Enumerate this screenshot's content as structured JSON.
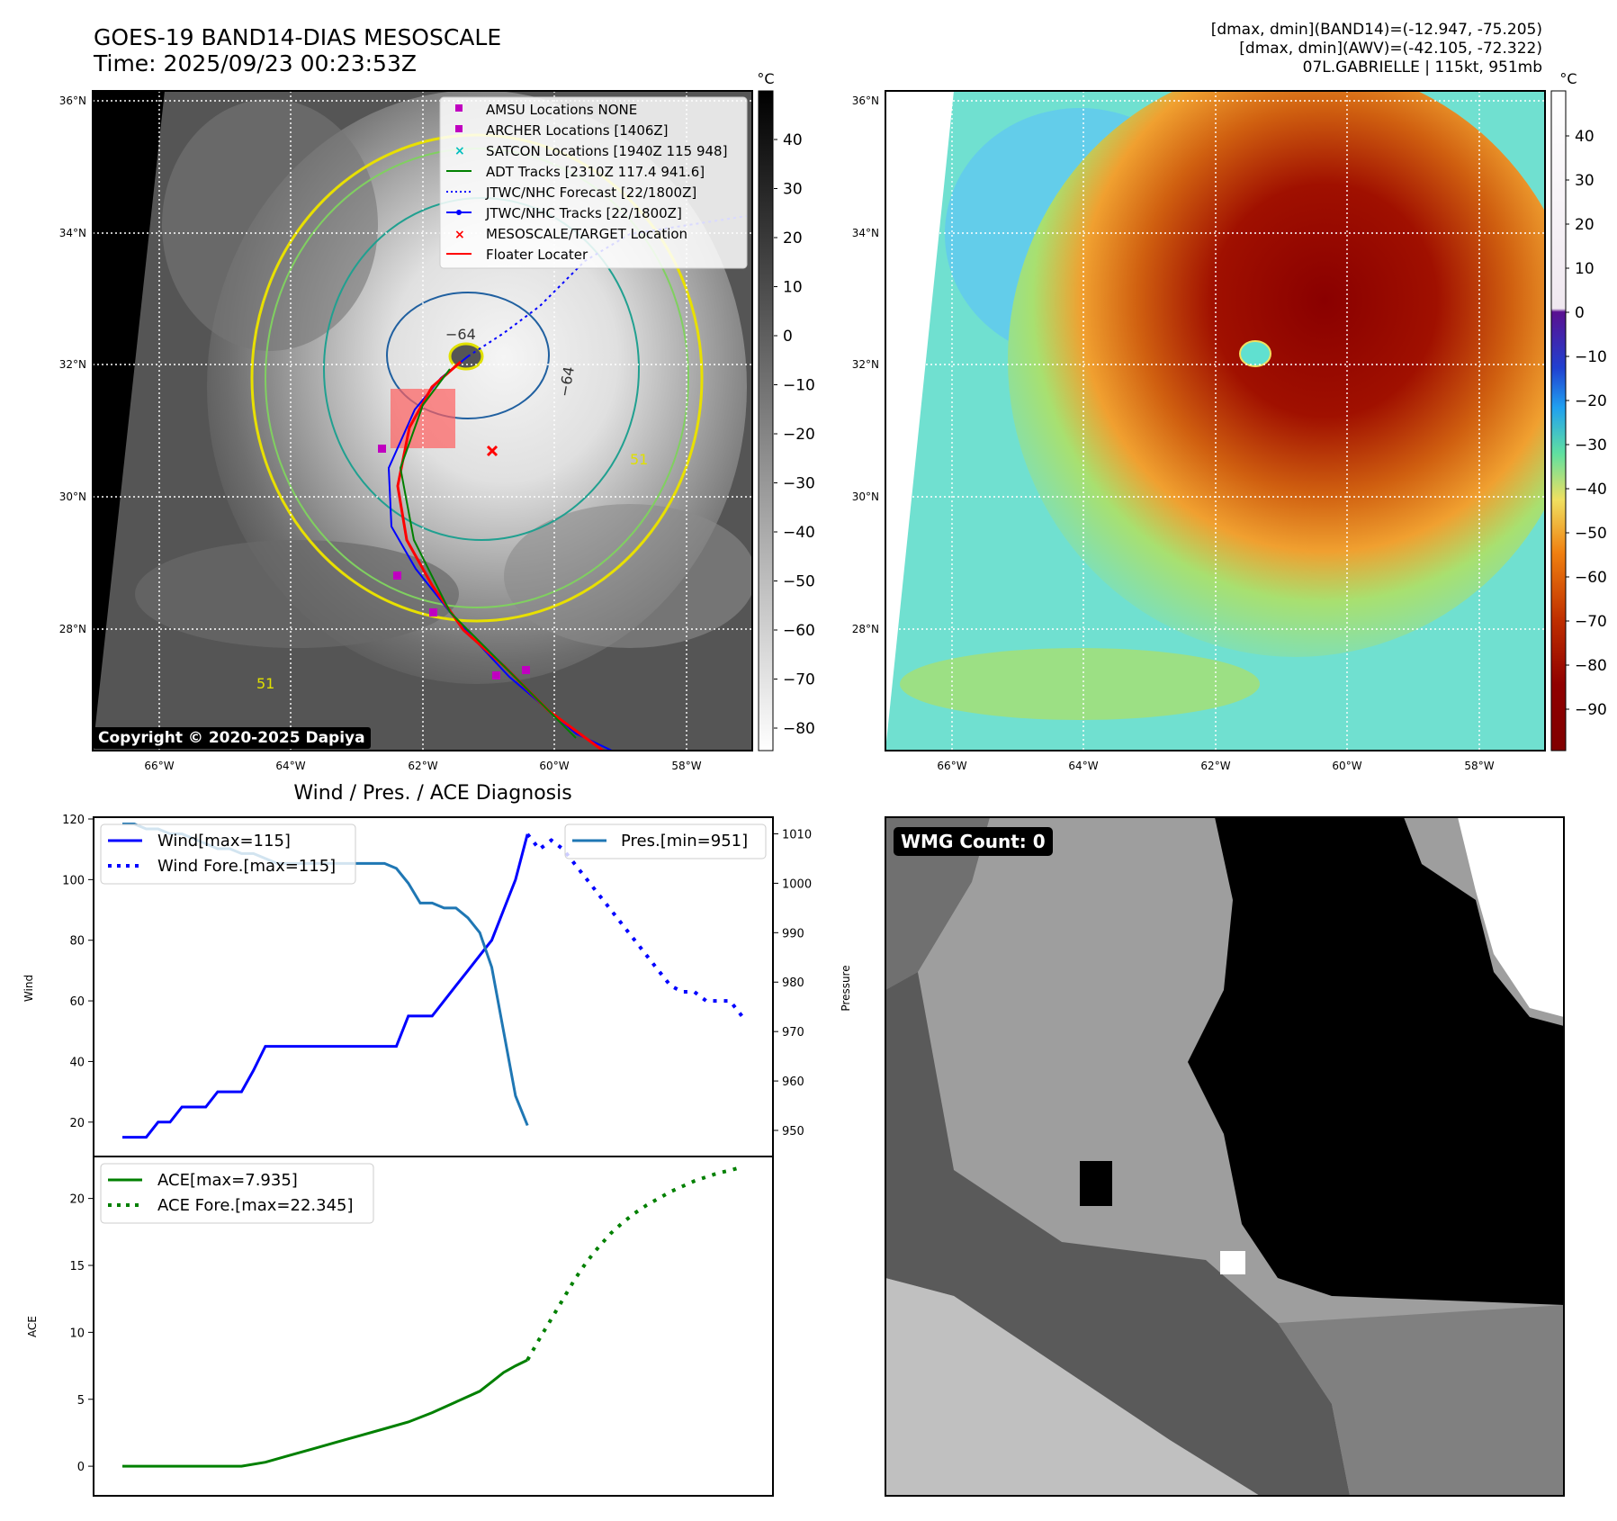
{
  "header": {
    "title": "GOES-19 BAND14-DIAS MESOSCALE",
    "time": "Time: 2025/09/23 00:23:53Z",
    "stats_band14": "[dmax, dmin](BAND14)=(-12.947, -75.205)",
    "stats_awv": "[dmax, dmin](AWV)=(-42.105, -72.322)",
    "storm": "07L.GABRIELLE | 115kt, 951mb"
  },
  "map_left": {
    "colorbar_unit": "°C",
    "colorbar_ticks": [
      "40",
      "30",
      "20",
      "10",
      "0",
      "−10",
      "−20",
      "−30",
      "−40",
      "−50",
      "−60",
      "−70",
      "−80"
    ],
    "lat_labels": [
      "36°N",
      "34°N",
      "32°N",
      "30°N",
      "28°N"
    ],
    "lon_labels": [
      "66°W",
      "64°W",
      "62°W",
      "60°W",
      "58°W"
    ],
    "contour_labels": [
      "−64",
      "−64",
      "51",
      "51"
    ],
    "copyright": "Copyright © 2020-2025 Dapiya",
    "legend": [
      {
        "label": "AMSU Locations NONE",
        "marker": "square",
        "color": "#c000c0"
      },
      {
        "label": "ARCHER Locations [1406Z]",
        "marker": "square",
        "color": "#c000c0"
      },
      {
        "label": "SATCON Locations [1940Z 115 948]",
        "marker": "x",
        "color": "#00bfbf"
      },
      {
        "label": "ADT Tracks [2310Z 117.4 941.6]",
        "marker": "line",
        "color": "#008000"
      },
      {
        "label": "JTWC/NHC Forecast [22/1800Z]",
        "marker": "dotted",
        "color": "#0000ff"
      },
      {
        "label": "JTWC/NHC Tracks [22/1800Z]",
        "marker": "line-dot",
        "color": "#0000ff"
      },
      {
        "label": "MESOSCALE/TARGET Location",
        "marker": "x",
        "color": "#ff0000"
      },
      {
        "label": "Floater Locater",
        "marker": "line",
        "color": "#ff0000"
      }
    ]
  },
  "map_right": {
    "colorbar_unit": "°C",
    "colorbar_ticks": [
      "40",
      "30",
      "20",
      "10",
      "0",
      "−10",
      "−20",
      "−30",
      "−40",
      "−50",
      "−60",
      "−70",
      "−80",
      "−90"
    ],
    "lat_labels": [
      "36°N",
      "34°N",
      "32°N",
      "30°N",
      "28°N"
    ],
    "lon_labels": [
      "66°W",
      "64°W",
      "62°W",
      "60°W",
      "58°W"
    ]
  },
  "diagnosis": {
    "title": "Wind / Pres. / ACE Diagnosis",
    "wind_axis_label": "Wind",
    "pressure_axis_label": "Pressure",
    "ace_axis_label": "ACE",
    "legend_wind": "Wind[max=115]",
    "legend_wind_fore": "Wind Fore.[max=115]",
    "legend_pres": "Pres.[min=951]",
    "legend_ace": "ACE[max=7.935]",
    "legend_ace_fore": "ACE Fore.[max=22.345]"
  },
  "wmg": {
    "label": "WMG Count: 0"
  },
  "colors": {
    "wind": "#0000ff",
    "pressure": "#1f77b4",
    "ace": "#008000"
  },
  "chart_data": [
    {
      "type": "line",
      "title": "Wind / Pres. / ACE Diagnosis",
      "ylabel": "Wind",
      "ylim": [
        14,
        120
      ],
      "y_ticks": [
        20,
        40,
        60,
        80,
        100,
        120
      ],
      "series": [
        {
          "name": "Wind[max=115]",
          "x": [
            0,
            2,
            3,
            4,
            5,
            6,
            7,
            8,
            9,
            10,
            11,
            12,
            13,
            14,
            15,
            16,
            17,
            18,
            19,
            20,
            21,
            22,
            23,
            24,
            25,
            26,
            27,
            28,
            29,
            30,
            31,
            32,
            33,
            34
          ],
          "values": [
            15,
            15,
            20,
            20,
            25,
            25,
            25,
            30,
            30,
            30,
            37,
            45,
            45,
            45,
            45,
            45,
            45,
            45,
            45,
            45,
            45,
            45,
            45,
            55,
            55,
            55,
            60,
            65,
            70,
            75,
            80,
            90,
            100,
            115
          ]
        },
        {
          "name": "Wind Fore.[max=115]",
          "x": [
            34,
            35,
            36,
            37,
            38,
            39,
            40,
            41,
            42,
            43,
            44,
            45,
            46,
            47,
            48,
            49,
            50,
            51,
            52
          ],
          "values": [
            115,
            110,
            113,
            110,
            105,
            100,
            95,
            90,
            85,
            80,
            75,
            70,
            65,
            63,
            63,
            60,
            60,
            60,
            55
          ]
        }
      ]
    },
    {
      "type": "line",
      "ylabel": "Pressure",
      "ylim": [
        948,
        1013
      ],
      "y_ticks": [
        950,
        960,
        970,
        980,
        990,
        1000,
        1010
      ],
      "series": [
        {
          "name": "Pres.[min=951]",
          "x": [
            0,
            1,
            2,
            3,
            4,
            5,
            6,
            7,
            8,
            9,
            10,
            11,
            12,
            13,
            14,
            15,
            16,
            17,
            18,
            19,
            20,
            21,
            22,
            23,
            24,
            25,
            26,
            27,
            28,
            29,
            30,
            31,
            32,
            33,
            34
          ],
          "values": [
            1012,
            1012,
            1011,
            1011,
            1010,
            1010,
            1009,
            1008,
            1007,
            1007,
            1006,
            1006,
            1005,
            1004,
            1004,
            1004,
            1004,
            1004,
            1004,
            1004,
            1004,
            1004,
            1004,
            1003,
            1000,
            996,
            996,
            995,
            995,
            993,
            990,
            983,
            970,
            957,
            951
          ]
        }
      ]
    },
    {
      "type": "line",
      "ylabel": "ACE",
      "ylim": [
        -1,
        23
      ],
      "y_ticks": [
        0,
        5,
        10,
        15,
        20
      ],
      "series": [
        {
          "name": "ACE[max=7.935]",
          "x": [
            0,
            2,
            4,
            6,
            8,
            10,
            12,
            14,
            16,
            18,
            20,
            22,
            24,
            26,
            28,
            30,
            31,
            32,
            33,
            34
          ],
          "values": [
            0,
            0,
            0,
            0,
            0,
            0,
            0.3,
            0.8,
            1.3,
            1.8,
            2.3,
            2.8,
            3.3,
            4.0,
            4.8,
            5.6,
            6.3,
            7.0,
            7.5,
            7.935
          ]
        },
        {
          "name": "ACE Fore.[max=22.345]",
          "x": [
            34,
            35,
            36,
            37,
            38,
            39,
            40,
            41,
            42,
            43,
            44,
            45,
            46,
            47,
            48,
            49,
            50,
            51,
            52
          ],
          "values": [
            7.935,
            9.5,
            11.0,
            12.5,
            14.0,
            15.3,
            16.4,
            17.4,
            18.2,
            18.9,
            19.5,
            20.0,
            20.5,
            20.9,
            21.3,
            21.6,
            21.9,
            22.1,
            22.345
          ]
        }
      ]
    }
  ]
}
